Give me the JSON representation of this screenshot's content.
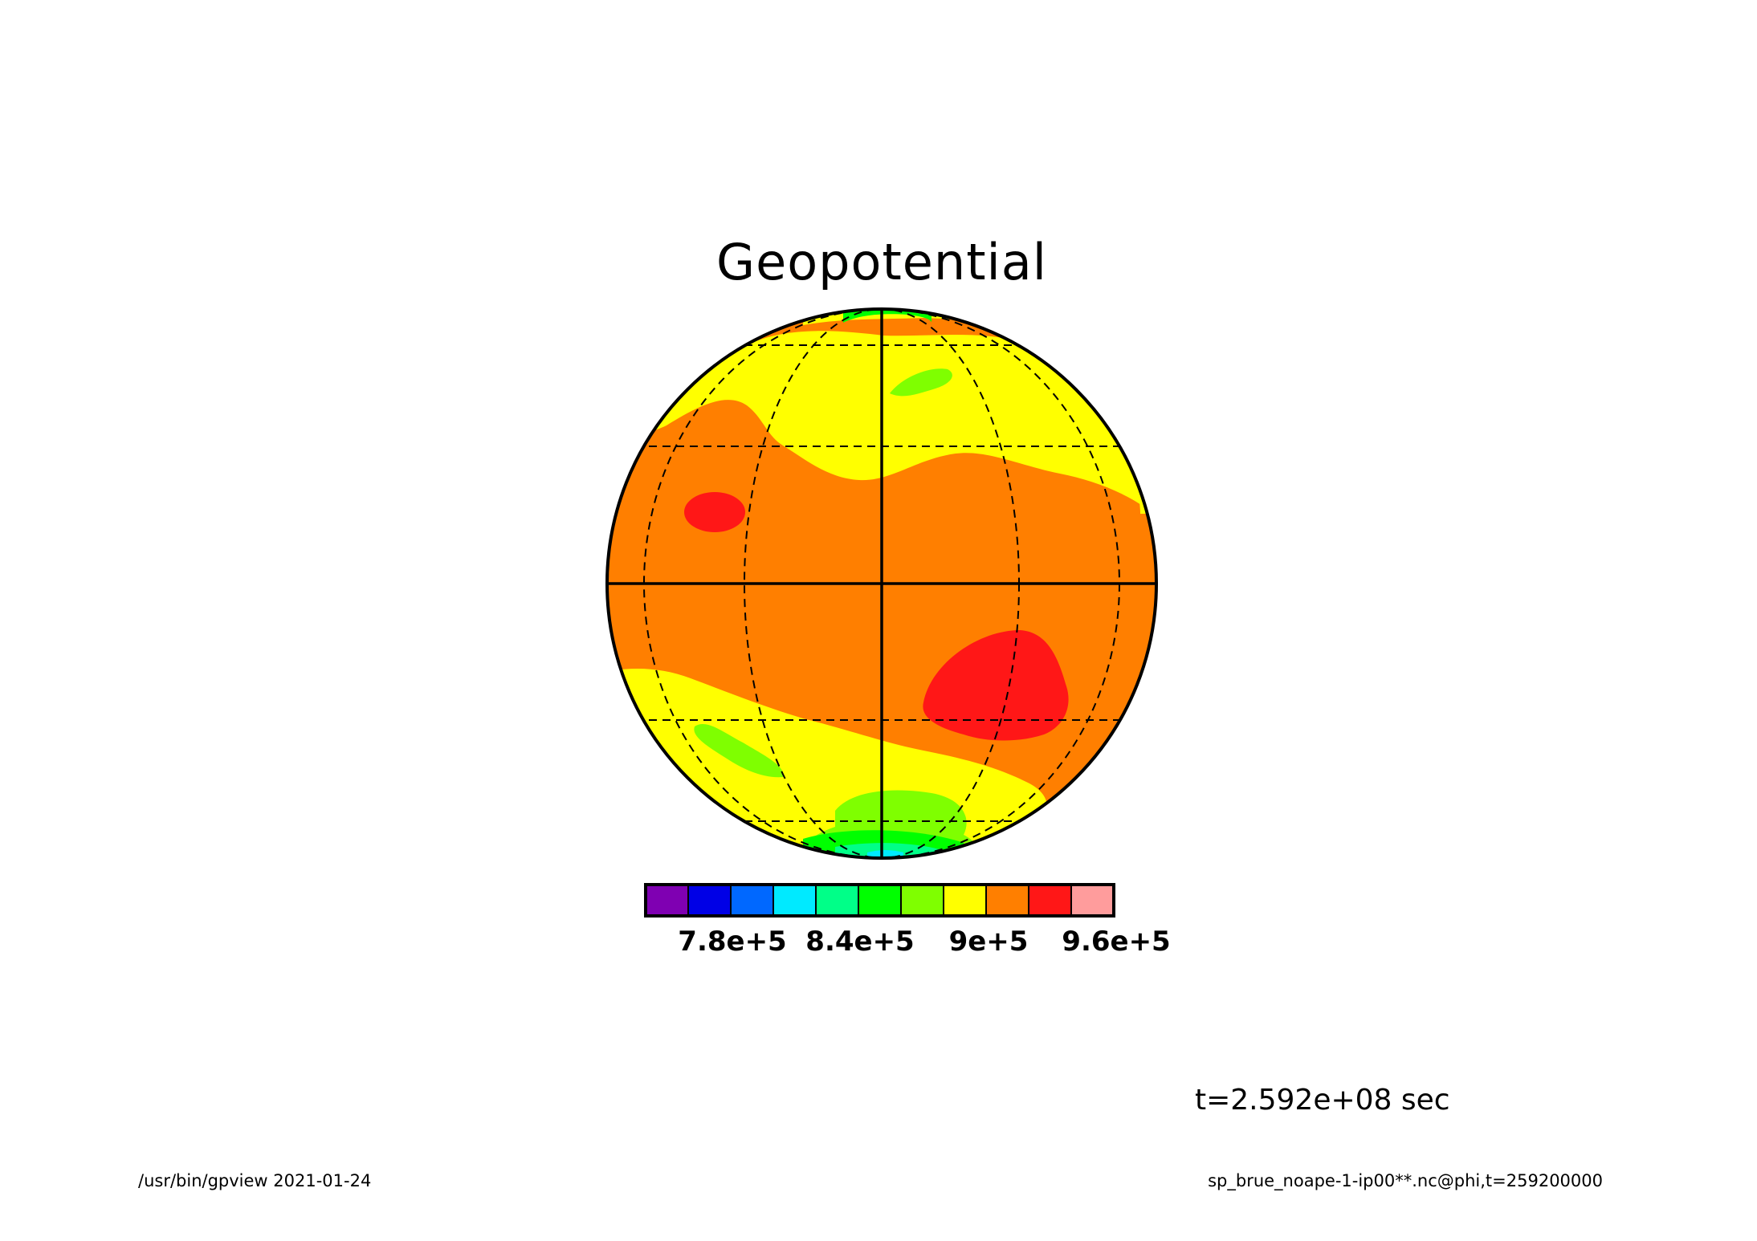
{
  "title": "Geopotential",
  "colorbar": {
    "colors": [
      "#7f00b2",
      "#0000e6",
      "#0068ff",
      "#00eaff",
      "#00ff88",
      "#00ff00",
      "#7fff00",
      "#ffff00",
      "#ff7f00",
      "#ff1717",
      "#ff9c9c"
    ],
    "tick_labels": [
      "7.8e+5",
      "8.4e+5",
      "9e+5",
      "9.6e+5"
    ]
  },
  "time_label": "t=2.592e+08 sec",
  "footer": {
    "left": "/usr/bin/gpview  2021-01-24",
    "right": "sp_brue_noape-1-ip00**.nc@phi,t=259200000"
  },
  "palette": {
    "orange": "#ff7f00",
    "yellow": "#ffff00",
    "red": "#ff1717",
    "green": "#7fff00",
    "greenb": "#00ff00",
    "cyan": "#00eaff",
    "teal": "#00ff88",
    "blue": "#0068ff"
  }
}
